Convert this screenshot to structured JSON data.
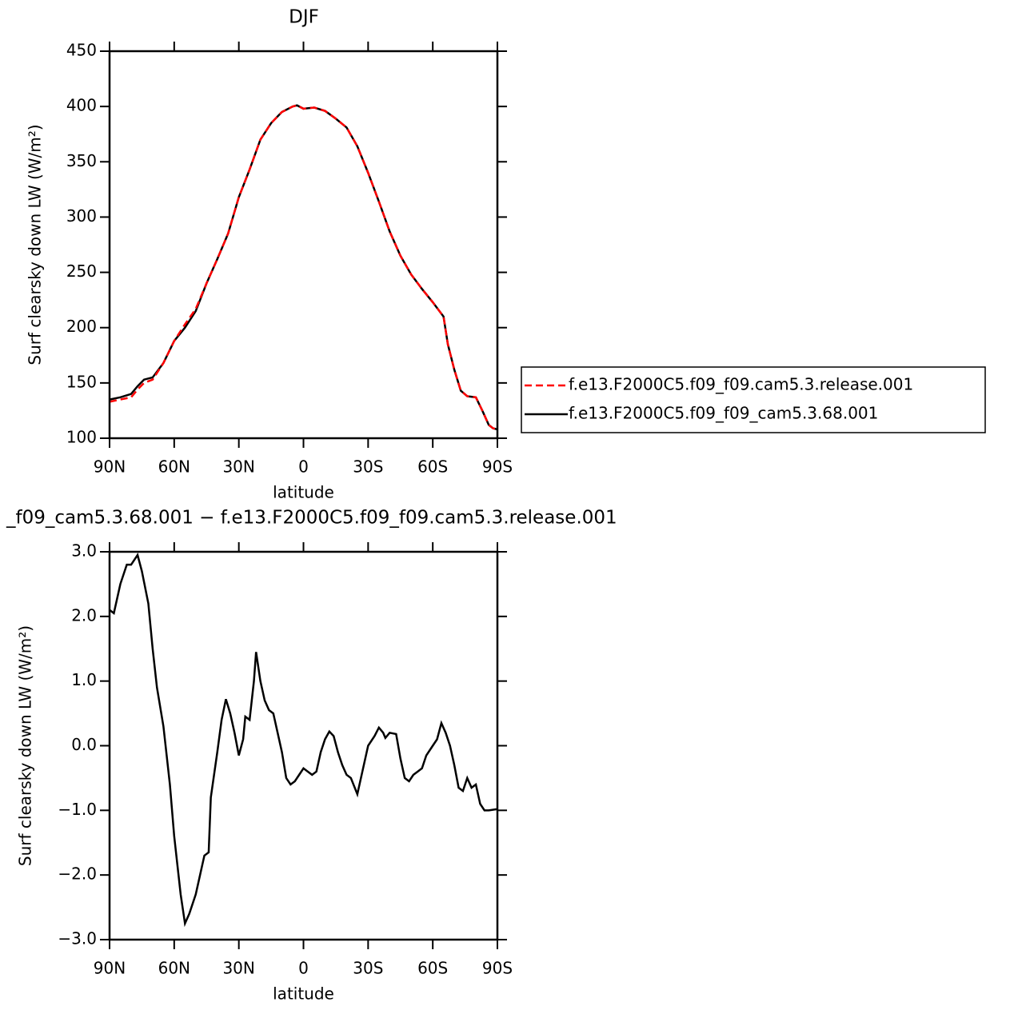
{
  "chart_data": [
    {
      "type": "line",
      "title": "DJF",
      "xlabel": "latitude",
      "ylabel": "Surf clearsky down LW (W/m²)",
      "x": [
        90,
        85,
        80,
        77,
        74,
        70,
        65,
        60,
        55,
        50,
        45,
        40,
        35,
        30,
        25,
        20,
        15,
        10,
        5,
        3,
        0,
        -5,
        -10,
        -15,
        -20,
        -25,
        -30,
        -35,
        -40,
        -45,
        -50,
        -55,
        -60,
        -65,
        -67,
        -70,
        -73,
        -76,
        -80,
        -83,
        -86,
        -88,
        -90
      ],
      "series": [
        {
          "name": "f.e13.F2000C5.f09_f09.cam5.3.release.001",
          "color": "#ff0000",
          "linestyle": "dashed",
          "values": [
            133,
            135,
            137,
            144,
            150,
            153,
            168,
            188,
            203,
            217,
            240,
            262,
            285,
            318,
            343,
            370,
            385,
            395,
            400,
            401,
            398,
            399,
            396,
            389,
            381,
            364,
            340,
            314,
            287,
            265,
            248,
            235,
            223,
            210,
            185,
            162,
            143,
            138,
            137,
            125,
            112,
            109,
            108
          ]
        },
        {
          "name": "f.e13.F2000C5.f09_f09_cam5.3.68.001",
          "color": "#000000",
          "linestyle": "solid",
          "values": [
            135,
            137,
            140,
            147,
            153,
            155,
            168,
            188,
            200,
            215,
            240,
            262,
            285,
            318,
            343,
            370,
            385,
            395,
            400,
            401,
            398,
            399,
            396,
            389,
            381,
            364,
            340,
            314,
            287,
            265,
            248,
            235,
            223,
            210,
            185,
            162,
            143,
            138,
            137,
            125,
            112,
            109,
            108
          ]
        }
      ],
      "xlim": [
        90,
        -90
      ],
      "ylim": [
        100,
        450
      ],
      "xticks": [
        {
          "value": 90,
          "label": "90N"
        },
        {
          "value": 60,
          "label": "60N"
        },
        {
          "value": 30,
          "label": "30N"
        },
        0,
        {
          "value": -30,
          "label": "30S"
        },
        {
          "value": -60,
          "label": "60S"
        },
        {
          "value": -90,
          "label": "90S"
        }
      ],
      "yticks": [
        100,
        150,
        200,
        250,
        300,
        350,
        400,
        450
      ],
      "legend": "right"
    },
    {
      "type": "line",
      "title": "_f09_cam5.3.68.001 − f.e13.F2000C5.f09_f09.cam5.3.release.001",
      "xlabel": "latitude",
      "ylabel": "Surf clearsky down LW (W/m²)",
      "x": [
        90,
        88,
        85,
        82,
        80,
        77,
        75,
        72,
        70,
        68,
        65,
        62,
        60,
        57,
        55,
        53,
        50,
        48,
        46,
        44,
        43,
        40,
        38,
        36,
        34,
        32,
        30,
        28,
        27,
        25,
        23,
        22,
        20,
        18,
        16,
        14,
        12,
        10,
        8,
        6,
        4,
        2,
        0,
        -2,
        -4,
        -6,
        -8,
        -10,
        -12,
        -14,
        -16,
        -18,
        -20,
        -22,
        -25,
        -27,
        -30,
        -33,
        -35,
        -37,
        -38,
        -40,
        -43,
        -45,
        -47,
        -49,
        -51,
        -53,
        -55,
        -57,
        -60,
        -62,
        -64,
        -66,
        -68,
        -70,
        -72,
        -74,
        -76,
        -78,
        -80,
        -82,
        -84,
        -86,
        -90
      ],
      "values": [
        2.1,
        2.05,
        2.5,
        2.8,
        2.8,
        2.95,
        2.7,
        2.2,
        1.5,
        0.9,
        0.3,
        -0.6,
        -1.4,
        -2.3,
        -2.75,
        -2.6,
        -2.3,
        -2.0,
        -1.7,
        -1.65,
        -0.8,
        -0.1,
        0.4,
        0.72,
        0.5,
        0.2,
        -0.15,
        0.1,
        0.45,
        0.4,
        1.0,
        1.45,
        1.0,
        0.7,
        0.55,
        0.5,
        0.2,
        -0.1,
        -0.5,
        -0.6,
        -0.55,
        -0.45,
        -0.35,
        -0.4,
        -0.45,
        -0.4,
        -0.1,
        0.1,
        0.22,
        0.15,
        -0.1,
        -0.3,
        -0.45,
        -0.5,
        -0.75,
        -0.45,
        0.0,
        0.15,
        0.28,
        0.2,
        0.12,
        0.2,
        0.18,
        -0.2,
        -0.5,
        -0.55,
        -0.45,
        -0.4,
        -0.35,
        -0.15,
        0.0,
        0.1,
        0.35,
        0.2,
        0.0,
        -0.3,
        -0.65,
        -0.7,
        -0.5,
        -0.65,
        -0.6,
        -0.9,
        -1.0,
        -1.0,
        -0.98
      ],
      "color": "#000000",
      "xlim": [
        90,
        -90
      ],
      "ylim": [
        -3,
        3
      ],
      "xticks": [
        {
          "value": 90,
          "label": "90N"
        },
        {
          "value": 60,
          "label": "60N"
        },
        {
          "value": 30,
          "label": "30N"
        },
        0,
        {
          "value": -30,
          "label": "30S"
        },
        {
          "value": -60,
          "label": "60S"
        },
        {
          "value": -90,
          "label": "90S"
        }
      ],
      "yticks": [
        {
          "value": -3,
          "label": "−3.0"
        },
        {
          "value": -2,
          "label": "−2.0"
        },
        {
          "value": -1,
          "label": "−1.0"
        },
        {
          "value": 0,
          "label": "0.0"
        },
        {
          "value": 1,
          "label": "1.0"
        },
        {
          "value": 2,
          "label": "2.0"
        },
        {
          "value": 3,
          "label": "3.0"
        }
      ]
    }
  ]
}
